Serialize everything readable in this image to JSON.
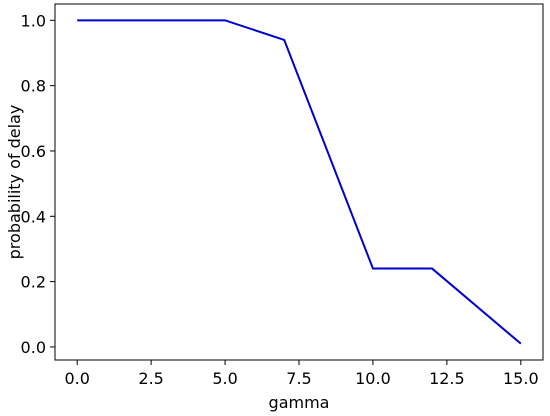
{
  "chart_data": {
    "type": "line",
    "x_label": "gamma",
    "y_label": "probability of delay",
    "x": [
      0,
      5,
      7,
      10,
      12,
      15
    ],
    "series": [
      {
        "color": "#0000cc",
        "values": [
          1.0,
          1.0,
          0.94,
          0.24,
          0.24,
          0.01
        ]
      }
    ],
    "xlim": [
      -0.75,
      15.75
    ],
    "xticks": [
      {
        "value": 0,
        "label": "0.0"
      },
      {
        "value": 2.5,
        "label": "2.5"
      },
      {
        "value": 5,
        "label": "5.0"
      },
      {
        "value": 7.5,
        "label": "7.5"
      },
      {
        "value": 10,
        "label": "10.0"
      },
      {
        "value": 12.5,
        "label": "12.5"
      },
      {
        "value": 15,
        "label": "15.0"
      }
    ],
    "ylim": [
      -0.04,
      1.05
    ],
    "yticks": [
      {
        "value": 0,
        "label": "0.0"
      },
      0.2,
      0.4,
      0.6,
      0.8,
      {
        "value": 1,
        "label": "1.0"
      }
    ],
    "grid": false
  }
}
